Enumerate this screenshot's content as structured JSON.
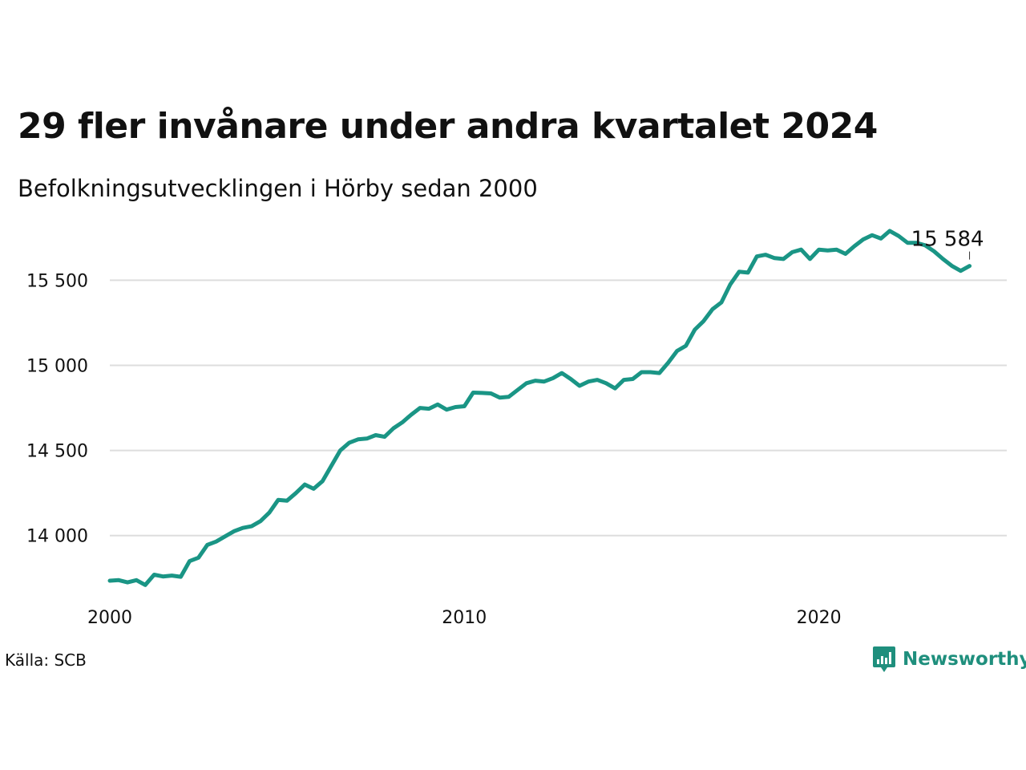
{
  "title": "29 fler invånare under andra kvartalet 2024",
  "subtitle": "Befolkningsutvecklingen i Hörby sedan 2000",
  "source": "Källa: SCB",
  "brand": "Newsworthy",
  "colors": {
    "line": "#1a9585",
    "grid": "#dddddd",
    "brand": "#1f8f7d"
  },
  "chart_data": {
    "type": "line",
    "title": "29 fler invånare under andra kvartalet 2024",
    "subtitle": "Befolkningsutvecklingen i Hörby sedan 2000",
    "xlabel": "",
    "ylabel": "",
    "x_ticks": [
      2000,
      2010,
      2020
    ],
    "y_ticks": [
      14000,
      14500,
      15000,
      15500
    ],
    "y_tick_labels": [
      "14 000",
      "14 500",
      "15 000",
      "15 500"
    ],
    "xlim": [
      2000,
      2025.3
    ],
    "ylim": [
      13650,
      15780
    ],
    "grid": true,
    "end_label": "15 584",
    "series": [
      {
        "x": [
          2000.0,
          2000.25,
          2000.5,
          2000.75,
          2001.0,
          2001.25,
          2001.5,
          2001.75,
          2002.0,
          2002.25,
          2002.5,
          2002.75,
          2003.0,
          2003.25,
          2003.5,
          2003.75,
          2004.0,
          2004.25,
          2004.5,
          2004.75,
          2005.0,
          2005.25,
          2005.5,
          2005.75,
          2006.0,
          2006.25,
          2006.5,
          2006.75,
          2007.0,
          2007.25,
          2007.5,
          2007.75,
          2008.0,
          2008.25,
          2008.5,
          2008.75,
          2009.0,
          2009.25,
          2009.5,
          2009.75,
          2010.0,
          2010.25,
          2010.5,
          2010.75,
          2011.0,
          2011.25,
          2011.5,
          2011.75,
          2012.0,
          2012.25,
          2012.5,
          2012.75,
          2013.0,
          2013.25,
          2013.5,
          2013.75,
          2014.0,
          2014.25,
          2014.5,
          2014.75,
          2015.0,
          2015.25,
          2015.5,
          2015.75,
          2016.0,
          2016.25,
          2016.5,
          2016.75,
          2017.0,
          2017.25,
          2017.5,
          2017.75,
          2018.0,
          2018.25,
          2018.5,
          2018.75,
          2019.0,
          2019.25,
          2019.5,
          2019.75,
          2020.0,
          2020.25,
          2020.5,
          2020.75,
          2021.0,
          2021.25,
          2021.5,
          2021.75,
          2022.0,
          2022.25,
          2022.5,
          2022.75,
          2023.0,
          2023.25,
          2023.5,
          2023.75,
          2024.0,
          2024.25
        ],
        "y": [
          13735,
          13738,
          13725,
          13738,
          13710,
          13770,
          13760,
          13765,
          13758,
          13850,
          13870,
          13945,
          13965,
          13995,
          14025,
          14045,
          14055,
          14085,
          14135,
          14210,
          14205,
          14250,
          14300,
          14275,
          14320,
          14410,
          14500,
          14545,
          14565,
          14570,
          14590,
          14580,
          14630,
          14665,
          14710,
          14750,
          14745,
          14770,
          14740,
          14755,
          14760,
          14840,
          14838,
          14835,
          14810,
          14815,
          14855,
          14895,
          14910,
          14905,
          14925,
          14955,
          14920,
          14880,
          14905,
          14915,
          14895,
          14865,
          14915,
          14920,
          14960,
          14960,
          14955,
          15015,
          15085,
          15115,
          15210,
          15260,
          15330,
          15370,
          15475,
          15550,
          15545,
          15640,
          15650,
          15630,
          15625,
          15665,
          15680,
          15625,
          15680,
          15675,
          15680,
          15655,
          15700,
          15740,
          15765,
          15745,
          15790,
          15760,
          15720,
          15720,
          15705,
          15670,
          15625,
          15585,
          15555,
          15584
        ]
      }
    ]
  }
}
